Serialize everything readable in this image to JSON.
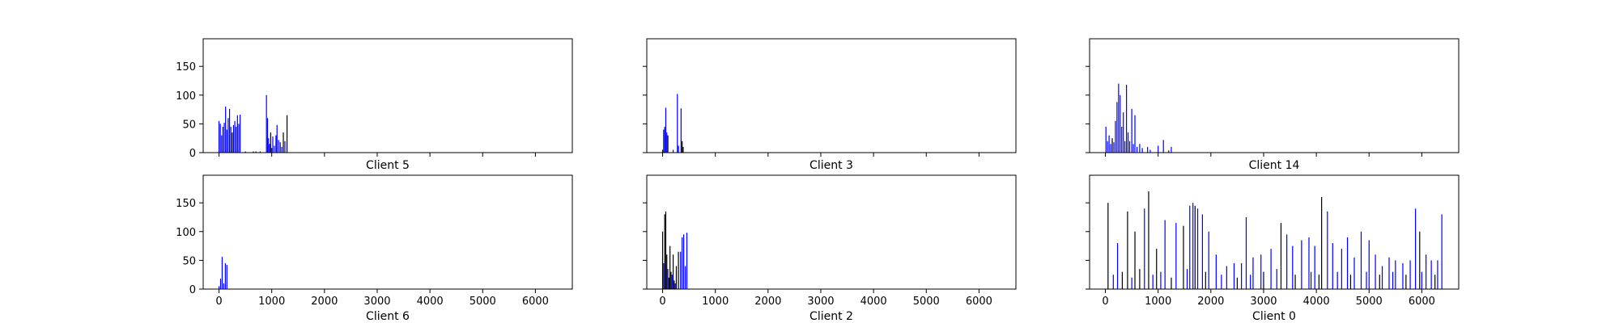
{
  "chart_data": [
    {
      "type": "bar",
      "title": "Client 5",
      "xlim": [
        -300,
        6700
      ],
      "ylim": [
        0,
        198
      ],
      "xticks": [
        0,
        1000,
        2000,
        3000,
        4000,
        5000,
        6000
      ],
      "yticks": [
        0,
        50,
        100,
        150
      ],
      "show_xtick_labels": false,
      "show_ytick_labels": true,
      "bars": [
        {
          "x": 0,
          "y": 55,
          "color": "blue"
        },
        {
          "x": 25,
          "y": 50,
          "color": "blue"
        },
        {
          "x": 50,
          "y": 30,
          "color": "blue"
        },
        {
          "x": 75,
          "y": 45,
          "color": "blue"
        },
        {
          "x": 100,
          "y": 52,
          "color": "blue"
        },
        {
          "x": 125,
          "y": 80,
          "color": "blue"
        },
        {
          "x": 150,
          "y": 40,
          "color": "blue"
        },
        {
          "x": 175,
          "y": 60,
          "color": "blue"
        },
        {
          "x": 200,
          "y": 76,
          "color": "blue"
        },
        {
          "x": 225,
          "y": 45,
          "color": "blue"
        },
        {
          "x": 250,
          "y": 35,
          "color": "black"
        },
        {
          "x": 275,
          "y": 48,
          "color": "blue"
        },
        {
          "x": 300,
          "y": 55,
          "color": "blue"
        },
        {
          "x": 325,
          "y": 45,
          "color": "blue"
        },
        {
          "x": 350,
          "y": 65,
          "color": "blue"
        },
        {
          "x": 375,
          "y": 50,
          "color": "blue"
        },
        {
          "x": 400,
          "y": 66,
          "color": "blue"
        },
        {
          "x": 500,
          "y": 2,
          "color": "black"
        },
        {
          "x": 650,
          "y": 2,
          "color": "black"
        },
        {
          "x": 700,
          "y": 2,
          "color": "black"
        },
        {
          "x": 780,
          "y": 2,
          "color": "black"
        },
        {
          "x": 900,
          "y": 100,
          "color": "blue"
        },
        {
          "x": 920,
          "y": 60,
          "color": "blue"
        },
        {
          "x": 940,
          "y": 25,
          "color": "blue"
        },
        {
          "x": 960,
          "y": 15,
          "color": "blue"
        },
        {
          "x": 980,
          "y": 35,
          "color": "black"
        },
        {
          "x": 1000,
          "y": 8,
          "color": "blue"
        },
        {
          "x": 1020,
          "y": 28,
          "color": "blue"
        },
        {
          "x": 1050,
          "y": 12,
          "color": "blue"
        },
        {
          "x": 1080,
          "y": 30,
          "color": "blue"
        },
        {
          "x": 1100,
          "y": 48,
          "color": "blue"
        },
        {
          "x": 1130,
          "y": 22,
          "color": "blue"
        },
        {
          "x": 1160,
          "y": 18,
          "color": "black"
        },
        {
          "x": 1190,
          "y": 10,
          "color": "blue"
        },
        {
          "x": 1220,
          "y": 35,
          "color": "black"
        },
        {
          "x": 1250,
          "y": 20,
          "color": "blue"
        },
        {
          "x": 1290,
          "y": 65,
          "color": "black"
        }
      ]
    },
    {
      "type": "bar",
      "title": "Client 3",
      "xlim": [
        -300,
        6700
      ],
      "ylim": [
        0,
        198
      ],
      "xticks": [
        0,
        1000,
        2000,
        3000,
        4000,
        5000,
        6000
      ],
      "yticks": [
        0,
        50,
        100,
        150
      ],
      "show_xtick_labels": false,
      "show_ytick_labels": false,
      "bars": [
        {
          "x": 0,
          "y": 5,
          "color": "black"
        },
        {
          "x": 20,
          "y": 40,
          "color": "blue"
        },
        {
          "x": 40,
          "y": 45,
          "color": "blue"
        },
        {
          "x": 60,
          "y": 78,
          "color": "blue"
        },
        {
          "x": 80,
          "y": 35,
          "color": "blue"
        },
        {
          "x": 100,
          "y": 30,
          "color": "black"
        },
        {
          "x": 200,
          "y": 5,
          "color": "blue"
        },
        {
          "x": 280,
          "y": 102,
          "color": "blue"
        },
        {
          "x": 300,
          "y": 12,
          "color": "blue"
        },
        {
          "x": 350,
          "y": 77,
          "color": "blue"
        },
        {
          "x": 370,
          "y": 20,
          "color": "black"
        },
        {
          "x": 390,
          "y": 10,
          "color": "black"
        }
      ]
    },
    {
      "type": "bar",
      "title": "Client 14",
      "xlim": [
        -300,
        6700
      ],
      "ylim": [
        0,
        198
      ],
      "xticks": [
        0,
        1000,
        2000,
        3000,
        4000,
        5000,
        6000
      ],
      "yticks": [
        0,
        50,
        100,
        150
      ],
      "show_xtick_labels": false,
      "show_ytick_labels": false,
      "bars": [
        {
          "x": 10,
          "y": 45,
          "color": "blue"
        },
        {
          "x": 40,
          "y": 20,
          "color": "blue"
        },
        {
          "x": 70,
          "y": 30,
          "color": "blue"
        },
        {
          "x": 100,
          "y": 15,
          "color": "blue"
        },
        {
          "x": 130,
          "y": 25,
          "color": "black"
        },
        {
          "x": 160,
          "y": 18,
          "color": "blue"
        },
        {
          "x": 190,
          "y": 55,
          "color": "blue"
        },
        {
          "x": 220,
          "y": 88,
          "color": "blue"
        },
        {
          "x": 250,
          "y": 120,
          "color": "blue"
        },
        {
          "x": 280,
          "y": 100,
          "color": "blue"
        },
        {
          "x": 310,
          "y": 45,
          "color": "blue"
        },
        {
          "x": 340,
          "y": 70,
          "color": "blue"
        },
        {
          "x": 370,
          "y": 20,
          "color": "blue"
        },
        {
          "x": 400,
          "y": 118,
          "color": "blue"
        },
        {
          "x": 430,
          "y": 35,
          "color": "blue"
        },
        {
          "x": 460,
          "y": 20,
          "color": "blue"
        },
        {
          "x": 500,
          "y": 76,
          "color": "blue"
        },
        {
          "x": 530,
          "y": 15,
          "color": "blue"
        },
        {
          "x": 560,
          "y": 65,
          "color": "blue"
        },
        {
          "x": 600,
          "y": 10,
          "color": "blue"
        },
        {
          "x": 650,
          "y": 15,
          "color": "blue"
        },
        {
          "x": 700,
          "y": 8,
          "color": "blue"
        },
        {
          "x": 800,
          "y": 10,
          "color": "blue"
        },
        {
          "x": 850,
          "y": 5,
          "color": "blue"
        },
        {
          "x": 1000,
          "y": 12,
          "color": "blue"
        },
        {
          "x": 1100,
          "y": 22,
          "color": "blue"
        },
        {
          "x": 1200,
          "y": 4,
          "color": "blue"
        },
        {
          "x": 1250,
          "y": 10,
          "color": "blue"
        }
      ]
    },
    {
      "type": "bar",
      "title": "Client 6",
      "xlim": [
        -300,
        6700
      ],
      "ylim": [
        0,
        198
      ],
      "xticks": [
        0,
        1000,
        2000,
        3000,
        4000,
        5000,
        6000
      ],
      "yticks": [
        0,
        50,
        100,
        150
      ],
      "show_xtick_labels": true,
      "show_ytick_labels": true,
      "bars": [
        {
          "x": 0,
          "y": 5,
          "color": "blue"
        },
        {
          "x": 30,
          "y": 18,
          "color": "blue"
        },
        {
          "x": 60,
          "y": 56,
          "color": "blue"
        },
        {
          "x": 90,
          "y": 10,
          "color": "blue"
        },
        {
          "x": 120,
          "y": 45,
          "color": "blue"
        },
        {
          "x": 150,
          "y": 42,
          "color": "blue"
        }
      ]
    },
    {
      "type": "bar",
      "title": "Client 2",
      "xlim": [
        -300,
        6700
      ],
      "ylim": [
        0,
        198
      ],
      "xticks": [
        0,
        1000,
        2000,
        3000,
        4000,
        5000,
        6000
      ],
      "yticks": [
        0,
        50,
        100,
        150
      ],
      "show_xtick_labels": true,
      "show_ytick_labels": false,
      "bars": [
        {
          "x": 0,
          "y": 100,
          "color": "black"
        },
        {
          "x": 20,
          "y": 45,
          "color": "blue"
        },
        {
          "x": 40,
          "y": 130,
          "color": "black"
        },
        {
          "x": 60,
          "y": 135,
          "color": "black"
        },
        {
          "x": 80,
          "y": 60,
          "color": "black"
        },
        {
          "x": 100,
          "y": 35,
          "color": "blue"
        },
        {
          "x": 120,
          "y": 20,
          "color": "black"
        },
        {
          "x": 140,
          "y": 75,
          "color": "black"
        },
        {
          "x": 160,
          "y": 30,
          "color": "black"
        },
        {
          "x": 180,
          "y": 25,
          "color": "blue"
        },
        {
          "x": 200,
          "y": 60,
          "color": "black"
        },
        {
          "x": 220,
          "y": 15,
          "color": "black"
        },
        {
          "x": 240,
          "y": 10,
          "color": "blue"
        },
        {
          "x": 260,
          "y": 40,
          "color": "black"
        },
        {
          "x": 300,
          "y": 65,
          "color": "black"
        },
        {
          "x": 340,
          "y": 65,
          "color": "blue"
        },
        {
          "x": 370,
          "y": 90,
          "color": "blue"
        },
        {
          "x": 400,
          "y": 95,
          "color": "blue"
        },
        {
          "x": 430,
          "y": 40,
          "color": "blue"
        },
        {
          "x": 460,
          "y": 98,
          "color": "blue"
        }
      ]
    },
    {
      "type": "bar",
      "title": "Client 0",
      "xlim": [
        -300,
        6700
      ],
      "ylim": [
        0,
        198
      ],
      "xticks": [
        0,
        1000,
        2000,
        3000,
        4000,
        5000,
        6000
      ],
      "yticks": [
        0,
        50,
        100,
        150
      ],
      "show_xtick_labels": true,
      "show_ytick_labels": false,
      "bars": [
        {
          "x": 50,
          "y": 150,
          "color": "black"
        },
        {
          "x": 230,
          "y": 80,
          "color": "blue"
        },
        {
          "x": 420,
          "y": 135,
          "color": "black"
        },
        {
          "x": 560,
          "y": 100,
          "color": "black"
        },
        {
          "x": 740,
          "y": 140,
          "color": "blue"
        },
        {
          "x": 820,
          "y": 170,
          "color": "black"
        },
        {
          "x": 970,
          "y": 70,
          "color": "black"
        },
        {
          "x": 1130,
          "y": 120,
          "color": "blue"
        },
        {
          "x": 1340,
          "y": 115,
          "color": "blue"
        },
        {
          "x": 1480,
          "y": 110,
          "color": "black"
        },
        {
          "x": 1600,
          "y": 145,
          "color": "blue"
        },
        {
          "x": 1660,
          "y": 150,
          "color": "blue"
        },
        {
          "x": 1700,
          "y": 145,
          "color": "black"
        },
        {
          "x": 1750,
          "y": 140,
          "color": "blue"
        },
        {
          "x": 1840,
          "y": 130,
          "color": "blue"
        },
        {
          "x": 1960,
          "y": 100,
          "color": "blue"
        },
        {
          "x": 2100,
          "y": 60,
          "color": "blue"
        },
        {
          "x": 2300,
          "y": 40,
          "color": "blue"
        },
        {
          "x": 2440,
          "y": 45,
          "color": "blue"
        },
        {
          "x": 2580,
          "y": 45,
          "color": "blue"
        },
        {
          "x": 2670,
          "y": 125,
          "color": "blue"
        },
        {
          "x": 2800,
          "y": 55,
          "color": "blue"
        },
        {
          "x": 2950,
          "y": 60,
          "color": "blue"
        },
        {
          "x": 3140,
          "y": 70,
          "color": "blue"
        },
        {
          "x": 3330,
          "y": 115,
          "color": "black"
        },
        {
          "x": 3440,
          "y": 95,
          "color": "blue"
        },
        {
          "x": 3550,
          "y": 75,
          "color": "blue"
        },
        {
          "x": 3720,
          "y": 85,
          "color": "blue"
        },
        {
          "x": 3860,
          "y": 90,
          "color": "blue"
        },
        {
          "x": 3970,
          "y": 75,
          "color": "blue"
        },
        {
          "x": 4100,
          "y": 160,
          "color": "black"
        },
        {
          "x": 4210,
          "y": 135,
          "color": "blue"
        },
        {
          "x": 4310,
          "y": 80,
          "color": "blue"
        },
        {
          "x": 4480,
          "y": 70,
          "color": "blue"
        },
        {
          "x": 4590,
          "y": 90,
          "color": "blue"
        },
        {
          "x": 4720,
          "y": 55,
          "color": "blue"
        },
        {
          "x": 4850,
          "y": 100,
          "color": "blue"
        },
        {
          "x": 5000,
          "y": 85,
          "color": "blue"
        },
        {
          "x": 5120,
          "y": 60,
          "color": "blue"
        },
        {
          "x": 5250,
          "y": 40,
          "color": "blue"
        },
        {
          "x": 5380,
          "y": 55,
          "color": "blue"
        },
        {
          "x": 5500,
          "y": 50,
          "color": "blue"
        },
        {
          "x": 5640,
          "y": 45,
          "color": "blue"
        },
        {
          "x": 5780,
          "y": 50,
          "color": "blue"
        },
        {
          "x": 5880,
          "y": 140,
          "color": "blue"
        },
        {
          "x": 5960,
          "y": 100,
          "color": "black"
        },
        {
          "x": 6080,
          "y": 60,
          "color": "blue"
        },
        {
          "x": 6180,
          "y": 50,
          "color": "blue"
        },
        {
          "x": 6300,
          "y": 50,
          "color": "blue"
        },
        {
          "x": 6380,
          "y": 130,
          "color": "blue"
        },
        {
          "x": 150,
          "y": 25,
          "color": "blue"
        },
        {
          "x": 320,
          "y": 30,
          "color": "black"
        },
        {
          "x": 500,
          "y": 20,
          "color": "blue"
        },
        {
          "x": 650,
          "y": 35,
          "color": "black"
        },
        {
          "x": 900,
          "y": 25,
          "color": "blue"
        },
        {
          "x": 1050,
          "y": 30,
          "color": "blue"
        },
        {
          "x": 1250,
          "y": 20,
          "color": "black"
        },
        {
          "x": 1550,
          "y": 35,
          "color": "blue"
        },
        {
          "x": 1900,
          "y": 30,
          "color": "black"
        },
        {
          "x": 2200,
          "y": 25,
          "color": "blue"
        },
        {
          "x": 2500,
          "y": 20,
          "color": "black"
        },
        {
          "x": 2750,
          "y": 25,
          "color": "blue"
        },
        {
          "x": 3000,
          "y": 30,
          "color": "black"
        },
        {
          "x": 3250,
          "y": 35,
          "color": "blue"
        },
        {
          "x": 3600,
          "y": 25,
          "color": "black"
        },
        {
          "x": 3900,
          "y": 30,
          "color": "blue"
        },
        {
          "x": 4050,
          "y": 25,
          "color": "black"
        },
        {
          "x": 4400,
          "y": 30,
          "color": "blue"
        },
        {
          "x": 4650,
          "y": 25,
          "color": "black"
        },
        {
          "x": 4950,
          "y": 30,
          "color": "blue"
        },
        {
          "x": 5200,
          "y": 25,
          "color": "black"
        },
        {
          "x": 5450,
          "y": 30,
          "color": "blue"
        },
        {
          "x": 5700,
          "y": 25,
          "color": "black"
        },
        {
          "x": 6000,
          "y": 30,
          "color": "blue"
        },
        {
          "x": 6250,
          "y": 25,
          "color": "black"
        }
      ]
    }
  ]
}
